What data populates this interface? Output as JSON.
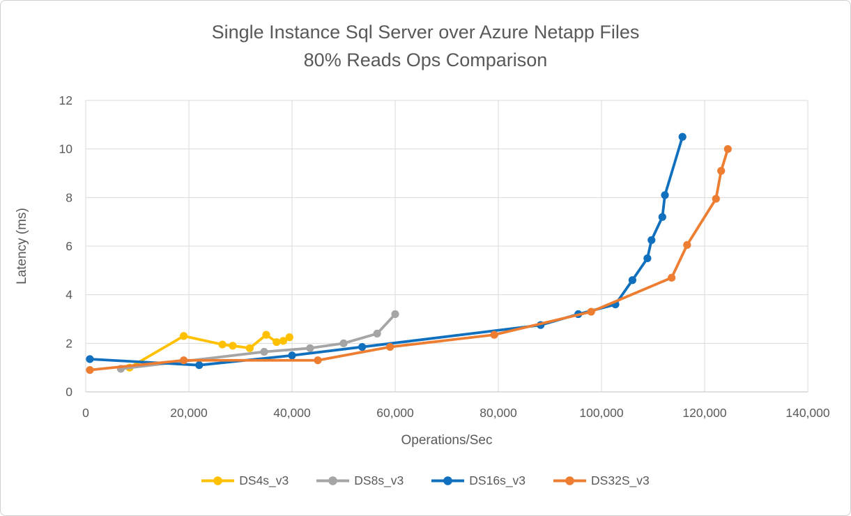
{
  "chart_data": {
    "type": "line",
    "title": "Single Instance Sql Server over Azure Netapp Files",
    "subtitle": "80% Reads Ops Comparison",
    "xlabel": "Operations/Sec",
    "ylabel": "Latency (ms)",
    "xlim": [
      0,
      140000
    ],
    "ylim": [
      0,
      12
    ],
    "grid": true,
    "legend_position": "bottom",
    "colors": {
      "gridline": "#D9D9D9",
      "axis_line": "#BFBFBF",
      "text": "#595959",
      "background": "#FFFFFF"
    },
    "x_ticks": [
      {
        "value": 0,
        "label": "0"
      },
      {
        "value": 20000,
        "label": "20,000"
      },
      {
        "value": 40000,
        "label": "40,000"
      },
      {
        "value": 60000,
        "label": "60,000"
      },
      {
        "value": 80000,
        "label": "80,000"
      },
      {
        "value": 100000,
        "label": "100,000"
      },
      {
        "value": 120000,
        "label": "120,000"
      },
      {
        "value": 140000,
        "label": "140,000"
      }
    ],
    "y_ticks": [
      {
        "value": 0,
        "label": "0"
      },
      {
        "value": 2,
        "label": "2"
      },
      {
        "value": 4,
        "label": "4"
      },
      {
        "value": 6,
        "label": "6"
      },
      {
        "value": 8,
        "label": "8"
      },
      {
        "value": 10,
        "label": "10"
      },
      {
        "value": 12,
        "label": "12"
      }
    ],
    "series": [
      {
        "name": "DS4s_v3",
        "color": "#FFC000",
        "points": [
          [
            8500,
            1.0
          ],
          [
            19000,
            2.3
          ],
          [
            26500,
            1.95
          ],
          [
            28500,
            1.9
          ],
          [
            31800,
            1.8
          ],
          [
            35000,
            2.35
          ],
          [
            37000,
            2.05
          ],
          [
            38300,
            2.1
          ],
          [
            39500,
            2.25
          ]
        ]
      },
      {
        "name": "DS8s_v3",
        "color": "#A5A5A5",
        "points": [
          [
            6800,
            0.95
          ],
          [
            34600,
            1.65
          ],
          [
            43500,
            1.8
          ],
          [
            50000,
            2.0
          ],
          [
            56500,
            2.4
          ],
          [
            60000,
            3.2
          ]
        ]
      },
      {
        "name": "DS16s_v3",
        "color": "#1170BD",
        "points": [
          [
            800,
            1.35
          ],
          [
            22000,
            1.1
          ],
          [
            40000,
            1.5
          ],
          [
            53600,
            1.85
          ],
          [
            88200,
            2.75
          ],
          [
            95500,
            3.2
          ],
          [
            102700,
            3.6
          ],
          [
            106000,
            4.6
          ],
          [
            108900,
            5.5
          ],
          [
            109700,
            6.25
          ],
          [
            111800,
            7.2
          ],
          [
            112300,
            8.1
          ],
          [
            115700,
            10.5
          ]
        ]
      },
      {
        "name": "DS32S_v3",
        "color": "#ED7D31",
        "points": [
          [
            800,
            0.9
          ],
          [
            19000,
            1.3
          ],
          [
            45000,
            1.3
          ],
          [
            59000,
            1.85
          ],
          [
            79200,
            2.35
          ],
          [
            98000,
            3.3
          ],
          [
            113600,
            4.7
          ],
          [
            116600,
            6.05
          ],
          [
            122200,
            7.95
          ],
          [
            123200,
            9.1
          ],
          [
            124500,
            10.0
          ]
        ]
      }
    ]
  }
}
